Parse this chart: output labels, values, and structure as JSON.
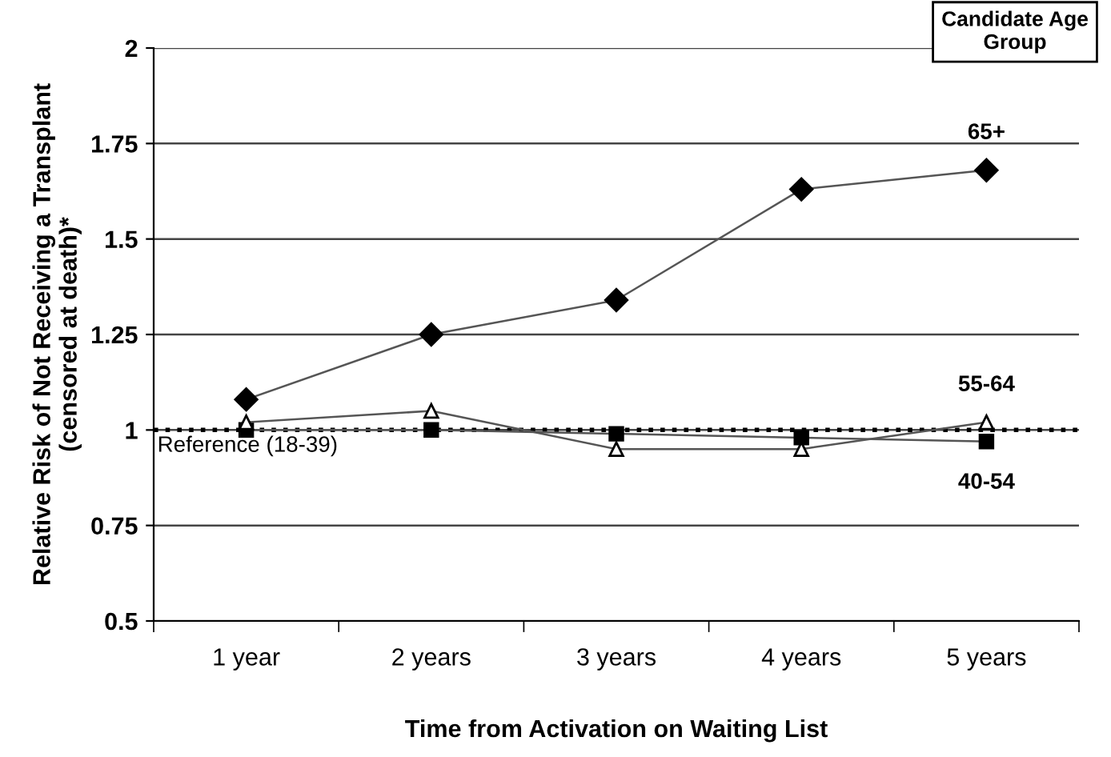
{
  "chart_data": {
    "type": "line",
    "xlabel": "Time from Activation on Waiting List",
    "ylabel": "Relative Risk of Not Receiving a Transplant\n(censored at death)*",
    "legend_title": "Candidate Age\nGroup",
    "categories": [
      "1 year",
      "2 years",
      "3 years",
      "4 years",
      "5 years"
    ],
    "series": [
      {
        "name": "65+",
        "color": "#000000",
        "marker": "diamond",
        "values": [
          1.08,
          1.25,
          1.34,
          1.63,
          1.68
        ]
      },
      {
        "name": "55-64",
        "color": "#000000",
        "marker": "triangle",
        "values": [
          1.02,
          1.05,
          0.95,
          0.95,
          1.02
        ]
      },
      {
        "name": "40-54",
        "color": "#000000",
        "marker": "square",
        "values": [
          1.0,
          1.0,
          0.99,
          0.98,
          0.97
        ]
      }
    ],
    "ylim": [
      0.5,
      2
    ],
    "yticks": [
      0.5,
      0.75,
      1,
      1.25,
      1.5,
      1.75,
      2
    ],
    "grid": "y",
    "legend": false,
    "line_style": "solid",
    "ref_lines": [
      {
        "axis": "y",
        "value": 1,
        "label": "Reference (18-39)",
        "line_style": "dotted",
        "color": "#000000"
      }
    ]
  }
}
